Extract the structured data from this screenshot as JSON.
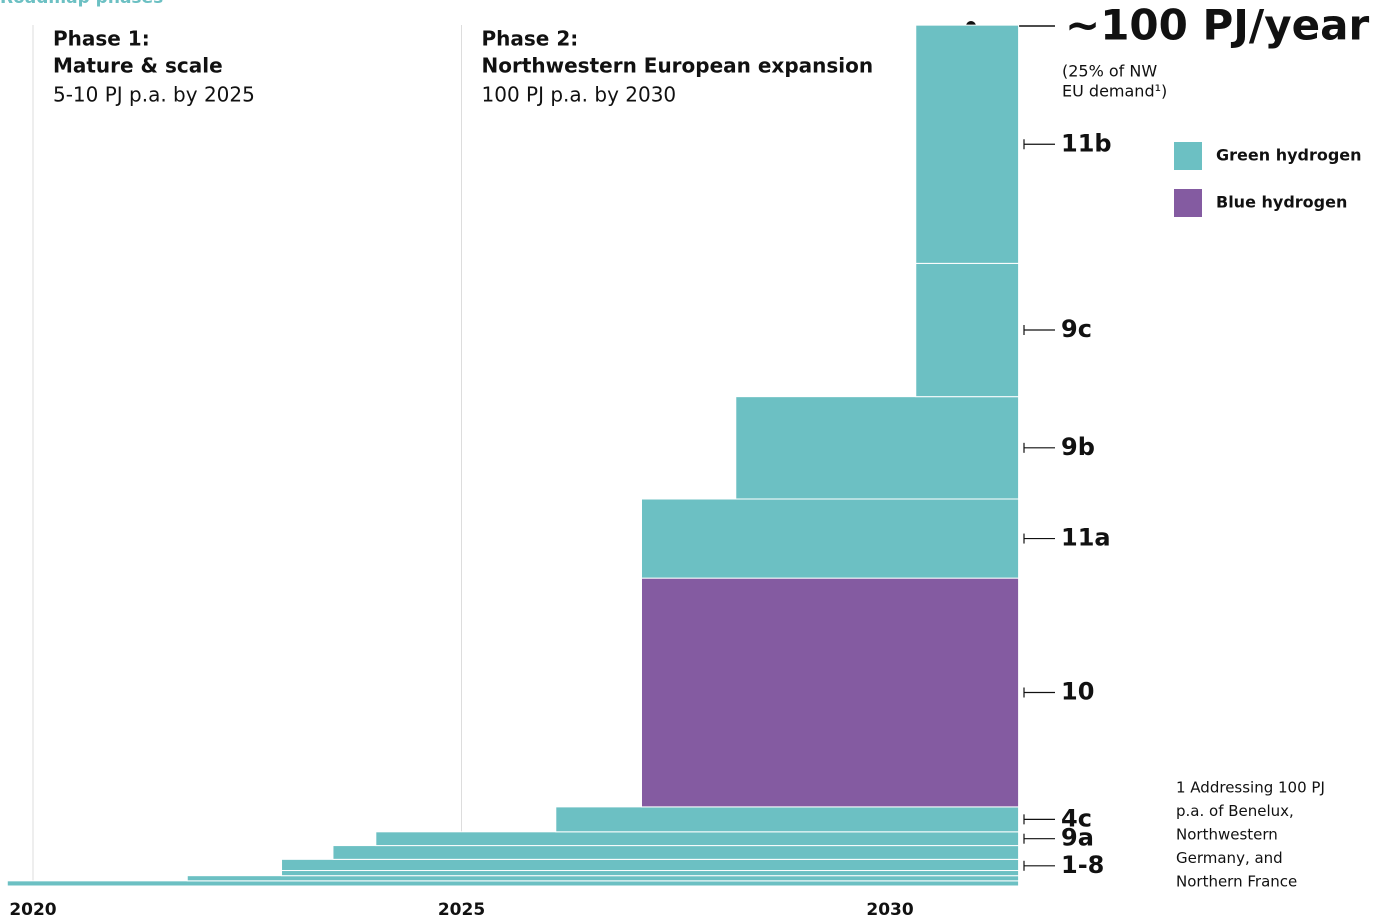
{
  "chart_data": {
    "type": "step-stack",
    "title": "Roadmap phases",
    "phases": [
      {
        "heading": "Phase 1:",
        "name": "Mature & scale",
        "target": "5-10 PJ p.a. by 2025"
      },
      {
        "heading": "Phase 2:",
        "name": "Northwestern European expansion",
        "target": "100 PJ p.a. by 2030"
      }
    ],
    "total_label": "~100 PJ/year",
    "total_note": [
      "(25% of NW",
      "EU demand¹)"
    ],
    "legend": [
      {
        "name": "Green hydrogen",
        "color": "#6cc0c3"
      },
      {
        "name": "Blue hydrogen",
        "color": "#845ba1"
      }
    ],
    "groups": [
      {
        "label": "1-8",
        "color": "#6cc0c3",
        "segments": [
          {
            "start": 2019.7,
            "value": 0.6
          },
          {
            "start": 2021.8,
            "value": 0.6
          },
          {
            "start": 2022.9,
            "value": 0.6
          },
          {
            "start": 2022.9,
            "value": 1.3
          },
          {
            "start": 2023.5,
            "value": 1.6
          }
        ]
      },
      {
        "label": "9a",
        "color": "#6cc0c3",
        "segments": [
          {
            "start": 2024.0,
            "value": 1.6
          }
        ]
      },
      {
        "label": "4c",
        "color": "#6cc0c3",
        "segments": [
          {
            "start": 2026.1,
            "value": 2.9
          }
        ]
      },
      {
        "label": "10",
        "color": "#845ba1",
        "segments": [
          {
            "start": 2027.1,
            "value": 26.6
          }
        ]
      },
      {
        "label": "11a",
        "color": "#6cc0c3",
        "segments": [
          {
            "start": 2027.1,
            "value": 9.2
          }
        ]
      },
      {
        "label": "9b",
        "color": "#6cc0c3",
        "segments": [
          {
            "start": 2028.2,
            "value": 11.9
          }
        ]
      },
      {
        "label": "9c",
        "color": "#6cc0c3",
        "segments": [
          {
            "start": 2030.3,
            "value": 15.5
          }
        ]
      },
      {
        "label": "11b",
        "color": "#6cc0c3",
        "segments": [
          {
            "start": 2030.3,
            "value": 27.7
          }
        ]
      }
    ],
    "xlim": [
      2019.6,
      2031.5
    ],
    "xticks": [
      2020,
      2025,
      2030
    ],
    "ylim": [
      0,
      100
    ],
    "footnote": [
      "1 Addressing 100 PJ",
      "p.a. of Benelux,",
      "Northwestern",
      "Germany, and",
      "Northern France"
    ]
  }
}
